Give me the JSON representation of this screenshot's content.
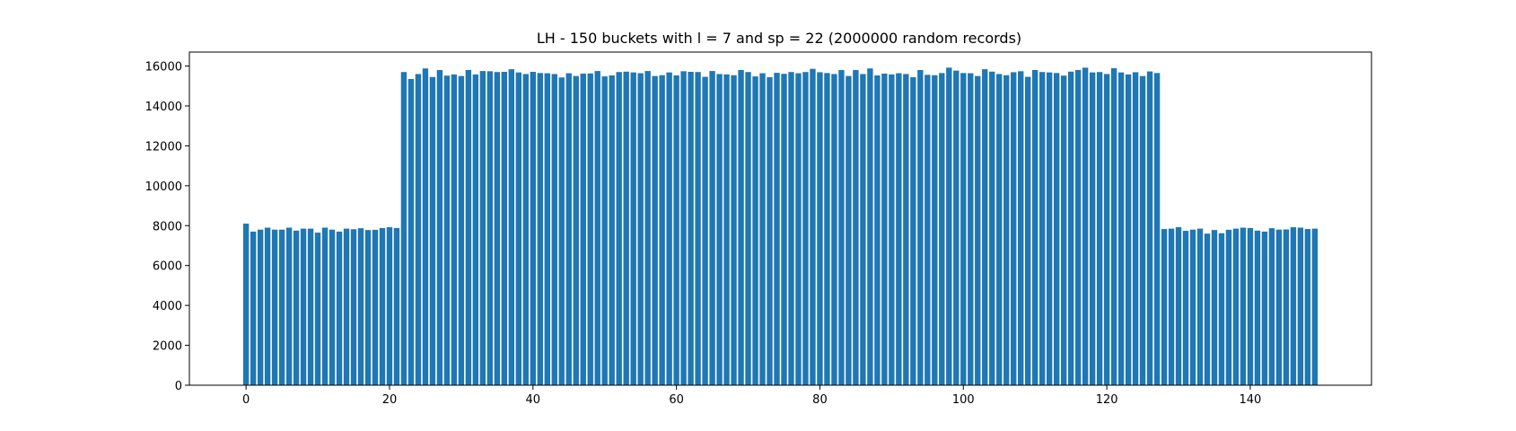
{
  "colors": {
    "bar": "#1f77b4",
    "axis": "#000000",
    "background": "#ffffff"
  },
  "chart_data": {
    "type": "bar",
    "title": "LH - 150 buckets with l = 7 and sp = 22 (2000000 random records)",
    "xlabel": "",
    "ylabel": "",
    "xlim": [
      -7.9,
      156.9
    ],
    "ylim": [
      0,
      16700
    ],
    "xticks": [
      0,
      20,
      40,
      60,
      80,
      100,
      120,
      140
    ],
    "yticks": [
      0,
      2000,
      4000,
      6000,
      8000,
      10000,
      12000,
      14000,
      16000
    ],
    "grid": false,
    "legend": "none",
    "x": [
      0,
      1,
      2,
      3,
      4,
      5,
      6,
      7,
      8,
      9,
      10,
      11,
      12,
      13,
      14,
      15,
      16,
      17,
      18,
      19,
      20,
      21,
      22,
      23,
      24,
      25,
      26,
      27,
      28,
      29,
      30,
      31,
      32,
      33,
      34,
      35,
      36,
      37,
      38,
      39,
      40,
      41,
      42,
      43,
      44,
      45,
      46,
      47,
      48,
      49,
      50,
      51,
      52,
      53,
      54,
      55,
      56,
      57,
      58,
      59,
      60,
      61,
      62,
      63,
      64,
      65,
      66,
      67,
      68,
      69,
      70,
      71,
      72,
      73,
      74,
      75,
      76,
      77,
      78,
      79,
      80,
      81,
      82,
      83,
      84,
      85,
      86,
      87,
      88,
      89,
      90,
      91,
      92,
      93,
      94,
      95,
      96,
      97,
      98,
      99,
      100,
      101,
      102,
      103,
      104,
      105,
      106,
      107,
      108,
      109,
      110,
      111,
      112,
      113,
      114,
      115,
      116,
      117,
      118,
      119,
      120,
      121,
      122,
      123,
      124,
      125,
      126,
      127,
      128,
      129,
      130,
      131,
      132,
      133,
      134,
      135,
      136,
      137,
      138,
      139,
      140,
      141,
      142,
      143,
      144,
      145,
      146,
      147,
      148,
      149
    ],
    "values": [
      8100,
      7700,
      7800,
      7900,
      7800,
      7800,
      7900,
      7750,
      7850,
      7850,
      7650,
      7900,
      7800,
      7700,
      7850,
      7820,
      7870,
      7780,
      7790,
      7880,
      7920,
      7880,
      15700,
      15350,
      15600,
      15880,
      15450,
      15800,
      15520,
      15580,
      15500,
      15800,
      15580,
      15750,
      15740,
      15700,
      15710,
      15840,
      15680,
      15600,
      15710,
      15650,
      15640,
      15600,
      15430,
      15640,
      15500,
      15620,
      15630,
      15750,
      15480,
      15530,
      15700,
      15720,
      15680,
      15640,
      15750,
      15500,
      15540,
      15680,
      15530,
      15740,
      15710,
      15700,
      15460,
      15750,
      15600,
      15580,
      15540,
      15800,
      15700,
      15480,
      15640,
      15440,
      15660,
      15610,
      15700,
      15640,
      15700,
      15860,
      15690,
      15650,
      15600,
      15800,
      15500,
      15800,
      15600,
      15880,
      15530,
      15620,
      15580,
      15640,
      15600,
      15440,
      15800,
      15560,
      15540,
      15650,
      15920,
      15770,
      15650,
      15640,
      15500,
      15840,
      15720,
      15600,
      15540,
      15690,
      15740,
      15460,
      15800,
      15700,
      15680,
      15650,
      15520,
      15720,
      15800,
      15920,
      15680,
      15700,
      15600,
      15890,
      15680,
      15580,
      15690,
      15500,
      15730,
      15650,
      7830,
      7850,
      7920,
      7740,
      7800,
      7850,
      7600,
      7780,
      7620,
      7790,
      7850,
      7900,
      7880,
      7750,
      7700,
      7870,
      7800,
      7810,
      7920,
      7900,
      7830,
      7850
    ]
  }
}
